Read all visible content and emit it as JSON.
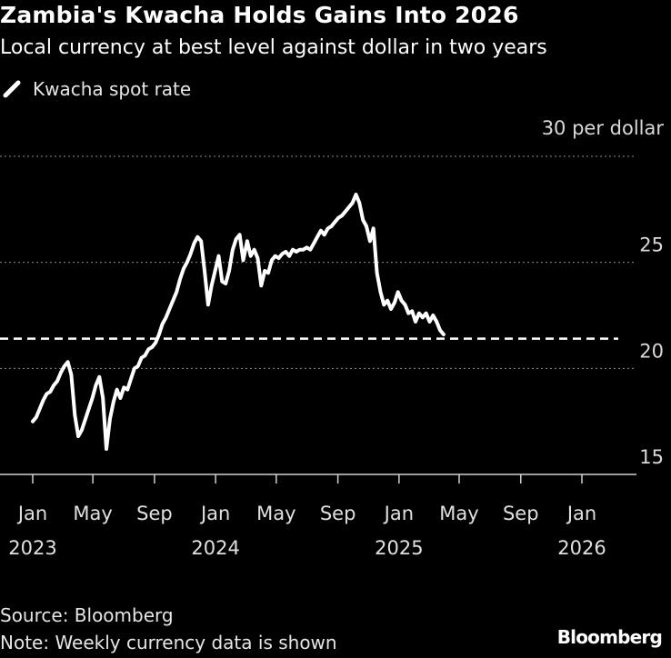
{
  "header": {
    "title": "Zambia's Kwacha Holds Gains Into 2026",
    "subtitle": "Local currency at best level against dollar in two years"
  },
  "legend": {
    "label": "Kwacha spot rate"
  },
  "footer": {
    "source": "Source: Bloomberg",
    "note": "Note: Weekly currency data is shown",
    "brand": "Bloomberg"
  },
  "colors": {
    "background": "#000000",
    "line": "#ffffff",
    "grid": "#8c8c8c",
    "reference": "#ffffff"
  },
  "chart_data": {
    "type": "line",
    "unit_label": "30 per dollar",
    "ylim": [
      15,
      30
    ],
    "y_ticks": [
      {
        "value": 30,
        "label": "30 per dollar"
      },
      {
        "value": 25,
        "label": "25"
      },
      {
        "value": 20,
        "label": "20"
      },
      {
        "value": 15,
        "label": "15"
      }
    ],
    "x_ticks": [
      {
        "date": "2023-01-01",
        "month": "Jan",
        "year": "2023"
      },
      {
        "date": "2023-05-01",
        "month": "May",
        "year": ""
      },
      {
        "date": "2023-09-01",
        "month": "Sep",
        "year": ""
      },
      {
        "date": "2024-01-01",
        "month": "Jan",
        "year": "2024"
      },
      {
        "date": "2024-05-01",
        "month": "May",
        "year": ""
      },
      {
        "date": "2024-09-01",
        "month": "Sep",
        "year": ""
      },
      {
        "date": "2025-01-01",
        "month": "Jan",
        "year": "2025"
      },
      {
        "date": "2025-05-01",
        "month": "May",
        "year": ""
      },
      {
        "date": "2025-09-01",
        "month": "Sep",
        "year": ""
      },
      {
        "date": "2026-01-01",
        "month": "Jan",
        "year": "2026"
      }
    ],
    "xlim": [
      "2022-12-25",
      "2026-03-01"
    ],
    "grid": true,
    "reference_line": {
      "value": 21.4,
      "style": "dashed"
    },
    "series": [
      {
        "name": "Kwacha spot rate",
        "points": [
          [
            "2023-01-01",
            17.5
          ],
          [
            "2023-01-08",
            17.7
          ],
          [
            "2023-01-15",
            18.1
          ],
          [
            "2023-01-22",
            18.5
          ],
          [
            "2023-01-29",
            18.8
          ],
          [
            "2023-02-05",
            18.9
          ],
          [
            "2023-02-12",
            19.2
          ],
          [
            "2023-02-19",
            19.4
          ],
          [
            "2023-02-26",
            19.8
          ],
          [
            "2023-03-05",
            20.1
          ],
          [
            "2023-03-12",
            20.3
          ],
          [
            "2023-03-19",
            19.7
          ],
          [
            "2023-03-26",
            17.8
          ],
          [
            "2023-04-02",
            16.8
          ],
          [
            "2023-04-09",
            17.1
          ],
          [
            "2023-04-16",
            17.6
          ],
          [
            "2023-04-23",
            18.1
          ],
          [
            "2023-04-30",
            18.6
          ],
          [
            "2023-05-07",
            19.2
          ],
          [
            "2023-05-14",
            19.6
          ],
          [
            "2023-05-21",
            18.6
          ],
          [
            "2023-05-28",
            16.2
          ],
          [
            "2023-06-04",
            17.6
          ],
          [
            "2023-06-11",
            18.4
          ],
          [
            "2023-06-18",
            19.0
          ],
          [
            "2023-06-25",
            18.6
          ],
          [
            "2023-07-02",
            19.1
          ],
          [
            "2023-07-09",
            19.0
          ],
          [
            "2023-07-16",
            19.5
          ],
          [
            "2023-07-23",
            20.0
          ],
          [
            "2023-07-30",
            20.1
          ],
          [
            "2023-08-06",
            20.5
          ],
          [
            "2023-08-13",
            20.6
          ],
          [
            "2023-08-20",
            20.9
          ],
          [
            "2023-08-27",
            21.0
          ],
          [
            "2023-09-03",
            21.2
          ],
          [
            "2023-09-10",
            21.6
          ],
          [
            "2023-09-17",
            22.1
          ],
          [
            "2023-09-24",
            22.4
          ],
          [
            "2023-10-01",
            22.8
          ],
          [
            "2023-10-08",
            23.2
          ],
          [
            "2023-10-15",
            23.6
          ],
          [
            "2023-10-22",
            24.2
          ],
          [
            "2023-10-29",
            24.7
          ],
          [
            "2023-11-05",
            25.0
          ],
          [
            "2023-11-12",
            25.4
          ],
          [
            "2023-11-19",
            25.9
          ],
          [
            "2023-11-26",
            26.2
          ],
          [
            "2023-12-03",
            26.0
          ],
          [
            "2023-12-10",
            24.6
          ],
          [
            "2023-12-17",
            23.0
          ],
          [
            "2023-12-24",
            23.9
          ],
          [
            "2023-12-31",
            24.6
          ],
          [
            "2024-01-07",
            25.3
          ],
          [
            "2024-01-14",
            24.1
          ],
          [
            "2024-01-21",
            24.0
          ],
          [
            "2024-01-28",
            24.6
          ],
          [
            "2024-02-04",
            25.6
          ],
          [
            "2024-02-11",
            26.1
          ],
          [
            "2024-02-18",
            26.3
          ],
          [
            "2024-02-25",
            25.1
          ],
          [
            "2024-03-04",
            26.0
          ],
          [
            "2024-03-11",
            25.3
          ],
          [
            "2024-03-18",
            25.6
          ],
          [
            "2024-03-25",
            25.2
          ],
          [
            "2024-04-01",
            23.9
          ],
          [
            "2024-04-08",
            24.6
          ],
          [
            "2024-04-15",
            24.5
          ],
          [
            "2024-04-22",
            25.1
          ],
          [
            "2024-04-29",
            25.3
          ],
          [
            "2024-05-06",
            25.2
          ],
          [
            "2024-05-13",
            25.4
          ],
          [
            "2024-05-20",
            25.5
          ],
          [
            "2024-05-27",
            25.3
          ],
          [
            "2024-06-03",
            25.6
          ],
          [
            "2024-06-10",
            25.5
          ],
          [
            "2024-06-17",
            25.6
          ],
          [
            "2024-06-24",
            25.6
          ],
          [
            "2024-07-01",
            25.7
          ],
          [
            "2024-07-08",
            25.6
          ],
          [
            "2024-07-15",
            25.9
          ],
          [
            "2024-07-22",
            26.2
          ],
          [
            "2024-07-29",
            26.5
          ],
          [
            "2024-08-05",
            26.3
          ],
          [
            "2024-08-12",
            26.6
          ],
          [
            "2024-08-19",
            26.7
          ],
          [
            "2024-08-26",
            26.9
          ],
          [
            "2024-09-02",
            27.1
          ],
          [
            "2024-09-09",
            27.2
          ],
          [
            "2024-09-16",
            27.4
          ],
          [
            "2024-09-23",
            27.6
          ],
          [
            "2024-09-30",
            27.8
          ],
          [
            "2024-10-07",
            28.2
          ],
          [
            "2024-10-14",
            27.8
          ],
          [
            "2024-10-21",
            27.0
          ],
          [
            "2024-10-28",
            26.7
          ],
          [
            "2024-11-04",
            26.0
          ],
          [
            "2024-11-11",
            26.6
          ],
          [
            "2024-11-18",
            24.5
          ],
          [
            "2024-11-25",
            23.6
          ],
          [
            "2024-12-02",
            23.0
          ],
          [
            "2024-12-09",
            23.2
          ],
          [
            "2024-12-16",
            22.8
          ],
          [
            "2024-12-23",
            23.1
          ],
          [
            "2024-12-30",
            23.6
          ],
          [
            "2025-01-06",
            23.2
          ],
          [
            "2025-01-13",
            23.0
          ],
          [
            "2025-01-20",
            22.6
          ],
          [
            "2025-01-27",
            22.7
          ],
          [
            "2025-02-03",
            22.2
          ],
          [
            "2025-02-10",
            22.6
          ],
          [
            "2025-02-17",
            22.4
          ],
          [
            "2025-02-24",
            22.6
          ],
          [
            "2025-03-03",
            22.2
          ],
          [
            "2025-03-10",
            22.5
          ],
          [
            "2025-03-17",
            22.2
          ],
          [
            "2025-03-24",
            21.8
          ],
          [
            "2025-03-31",
            21.6
          ]
        ]
      }
    ]
  }
}
